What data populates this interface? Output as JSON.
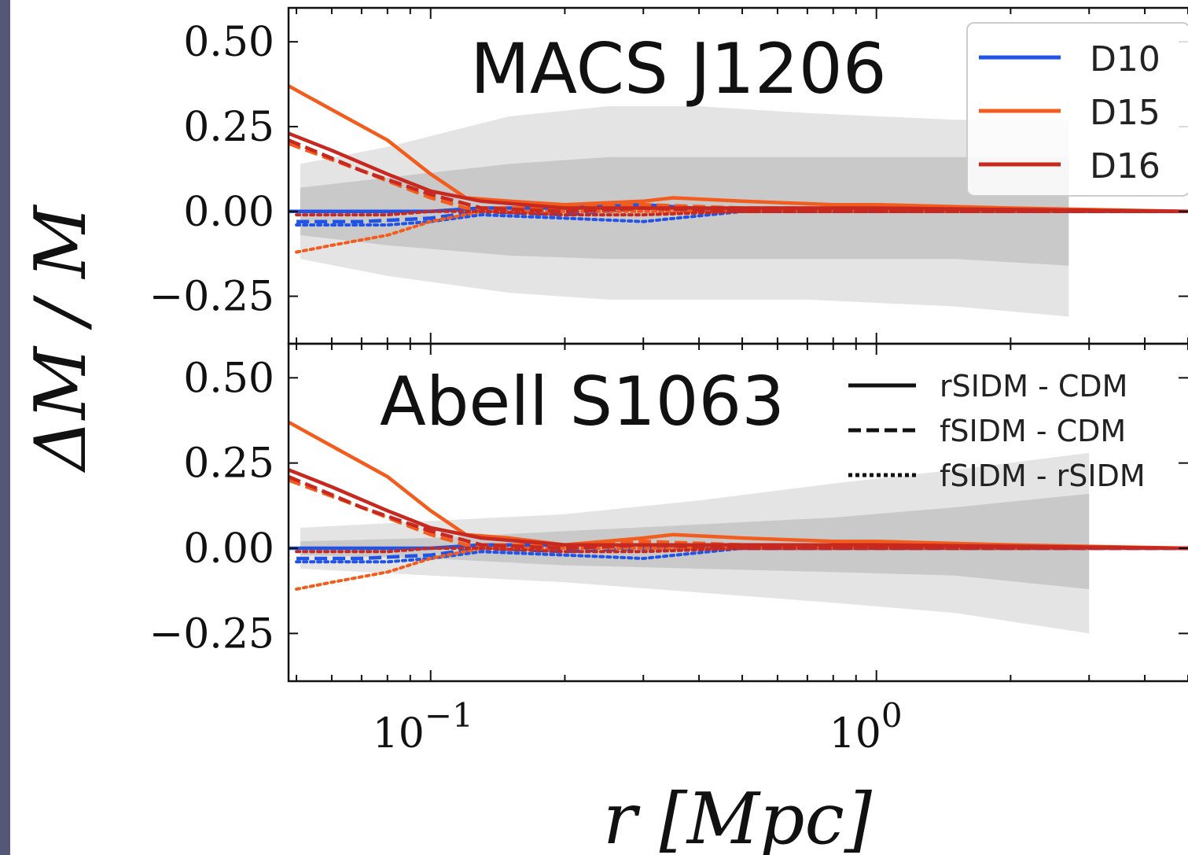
{
  "chart_data": {
    "type": "line",
    "xscale": "log",
    "xlim": [
      0.048,
      5.0
    ],
    "ylim": [
      -0.39,
      0.6
    ],
    "xticks": [
      {
        "value": 0.1,
        "base": "10",
        "exp": "−1"
      },
      {
        "value": 1,
        "base": "10",
        "exp": "0"
      }
    ],
    "yticks": [
      {
        "value": 0.5,
        "label": "0.50"
      },
      {
        "value": 0.25,
        "label": "0.25"
      },
      {
        "value": 0.0,
        "label": "0.00"
      },
      {
        "value": -0.25,
        "label": "−0.25"
      }
    ],
    "xlabel": "r [Mpc]",
    "ylabel": "ΔM / M",
    "grid": false,
    "model_legend": [
      {
        "name": "D10",
        "color": "#2154e6"
      },
      {
        "name": "D15",
        "color": "#f25d1d"
      },
      {
        "name": "D16",
        "color": "#c7281f"
      }
    ],
    "style_legend": [
      {
        "name": "rSIDM - CDM",
        "dash": "solid"
      },
      {
        "name": "fSIDM - CDM",
        "dash": "dashed"
      },
      {
        "name": "fSIDM - rSIDM",
        "dash": "dotted"
      }
    ],
    "panels": [
      {
        "title": "MACS J1206",
        "band_outer": {
          "x": [
            0.051,
            0.08,
            0.15,
            0.25,
            0.4,
            0.7,
            1.5,
            2.7
          ],
          "upper": [
            0.14,
            0.19,
            0.28,
            0.31,
            0.31,
            0.29,
            0.27,
            0.27
          ],
          "lower": [
            -0.14,
            -0.19,
            -0.24,
            -0.26,
            -0.26,
            -0.26,
            -0.28,
            -0.31
          ]
        },
        "band_inner": {
          "x": [
            0.051,
            0.08,
            0.15,
            0.25,
            0.4,
            0.7,
            1.5,
            2.7
          ],
          "upper": [
            0.07,
            0.1,
            0.14,
            0.16,
            0.16,
            0.16,
            0.16,
            0.16
          ],
          "lower": [
            -0.07,
            -0.1,
            -0.13,
            -0.14,
            -0.14,
            -0.14,
            -0.14,
            -0.16
          ]
        },
        "series": [
          {
            "model": "D10",
            "dash": "solid",
            "x": [
              0.048,
              0.1,
              0.13,
              0.2,
              0.3,
              0.5,
              1.0,
              5.0
            ],
            "y": [
              0.0,
              0.0,
              0.01,
              0.01,
              0.02,
              0.0,
              0.0,
              0.0
            ]
          },
          {
            "model": "D10",
            "dash": "dashed",
            "x": [
              0.05,
              0.07,
              0.1,
              0.13,
              0.2,
              0.3,
              0.5,
              1.0,
              5.0
            ],
            "y": [
              -0.03,
              -0.03,
              -0.02,
              0.0,
              -0.01,
              0.01,
              0.0,
              0.0,
              0.0
            ]
          },
          {
            "model": "D10",
            "dash": "dotted",
            "x": [
              0.05,
              0.08,
              0.1,
              0.13,
              0.2,
              0.3,
              0.5,
              1.0,
              5.0
            ],
            "y": [
              -0.04,
              -0.04,
              -0.03,
              -0.01,
              -0.02,
              -0.03,
              0.0,
              0.0,
              0.0
            ]
          },
          {
            "model": "D15",
            "dash": "solid",
            "x": [
              0.048,
              0.06,
              0.08,
              0.1,
              0.12,
              0.15,
              0.2,
              0.3,
              0.35,
              0.5,
              0.8,
              1.0,
              2.0,
              5.0
            ],
            "y": [
              0.37,
              0.3,
              0.21,
              0.11,
              0.04,
              0.03,
              0.02,
              0.03,
              0.04,
              0.03,
              0.02,
              0.02,
              0.01,
              0.0
            ]
          },
          {
            "model": "D15",
            "dash": "dashed",
            "x": [
              0.048,
              0.07,
              0.1,
              0.12,
              0.2,
              0.3,
              0.5,
              1.0,
              5.0
            ],
            "y": [
              0.2,
              0.12,
              0.04,
              0.01,
              0.01,
              0.02,
              0.01,
              0.01,
              0.0
            ]
          },
          {
            "model": "D15",
            "dash": "dotted",
            "x": [
              0.05,
              0.06,
              0.08,
              0.1,
              0.13,
              0.2,
              0.3,
              0.5,
              1.0,
              5.0
            ],
            "y": [
              -0.12,
              -0.1,
              -0.07,
              -0.03,
              0.0,
              0.0,
              0.0,
              0.0,
              0.0,
              0.0
            ]
          },
          {
            "model": "D16",
            "dash": "solid",
            "x": [
              0.048,
              0.06,
              0.08,
              0.1,
              0.13,
              0.2,
              0.3,
              0.5,
              1.0,
              5.0
            ],
            "y": [
              0.23,
              0.18,
              0.11,
              0.06,
              0.03,
              0.01,
              0.01,
              0.01,
              0.01,
              0.0
            ]
          },
          {
            "model": "D16",
            "dash": "dashed",
            "x": [
              0.048,
              0.07,
              0.1,
              0.13,
              0.2,
              0.3,
              0.5,
              1.0,
              5.0
            ],
            "y": [
              0.21,
              0.12,
              0.05,
              0.01,
              0.0,
              0.01,
              0.0,
              0.0,
              0.0
            ]
          },
          {
            "model": "D16",
            "dash": "dotted",
            "x": [
              0.05,
              0.08,
              0.1,
              0.13,
              0.2,
              0.3,
              0.5,
              1.0,
              5.0
            ],
            "y": [
              -0.01,
              -0.01,
              0.0,
              0.0,
              -0.01,
              -0.01,
              0.0,
              0.0,
              0.0
            ]
          }
        ]
      },
      {
        "title": "Abell S1063",
        "band_outer": {
          "x": [
            0.051,
            0.1,
            0.2,
            0.4,
            0.8,
            1.5,
            3.0
          ],
          "upper": [
            0.06,
            0.08,
            0.1,
            0.14,
            0.19,
            0.23,
            0.28
          ],
          "lower": [
            -0.06,
            -0.08,
            -0.1,
            -0.13,
            -0.16,
            -0.19,
            -0.25
          ]
        },
        "band_inner": {
          "x": [
            0.051,
            0.1,
            0.2,
            0.4,
            0.8,
            1.5,
            3.0
          ],
          "upper": [
            0.02,
            0.03,
            0.05,
            0.07,
            0.09,
            0.12,
            0.16
          ],
          "lower": [
            -0.02,
            -0.03,
            -0.05,
            -0.06,
            -0.07,
            -0.08,
            -0.12
          ]
        },
        "series": [
          {
            "model": "D10",
            "dash": "solid",
            "x": [
              0.048,
              0.1,
              0.13,
              0.2,
              0.3,
              0.5,
              1.0,
              5.0
            ],
            "y": [
              0.0,
              0.0,
              0.01,
              0.01,
              0.01,
              0.0,
              0.0,
              0.0
            ]
          },
          {
            "model": "D10",
            "dash": "dashed",
            "x": [
              0.05,
              0.07,
              0.1,
              0.13,
              0.2,
              0.3,
              0.5,
              1.0,
              5.0
            ],
            "y": [
              -0.03,
              -0.03,
              -0.02,
              0.0,
              -0.01,
              0.0,
              0.0,
              0.0,
              0.0
            ]
          },
          {
            "model": "D10",
            "dash": "dotted",
            "x": [
              0.05,
              0.08,
              0.1,
              0.13,
              0.2,
              0.3,
              0.5,
              1.0,
              5.0
            ],
            "y": [
              -0.04,
              -0.04,
              -0.03,
              -0.01,
              -0.02,
              -0.03,
              0.0,
              0.0,
              0.0
            ]
          },
          {
            "model": "D15",
            "dash": "solid",
            "x": [
              0.048,
              0.06,
              0.08,
              0.1,
              0.12,
              0.15,
              0.2,
              0.3,
              0.35,
              0.5,
              0.8,
              1.0,
              2.0,
              5.0
            ],
            "y": [
              0.37,
              0.3,
              0.21,
              0.11,
              0.04,
              0.03,
              0.01,
              0.03,
              0.04,
              0.03,
              0.02,
              0.02,
              0.01,
              0.0
            ]
          },
          {
            "model": "D15",
            "dash": "dashed",
            "x": [
              0.048,
              0.07,
              0.1,
              0.12,
              0.2,
              0.3,
              0.5,
              1.0,
              5.0
            ],
            "y": [
              0.2,
              0.12,
              0.04,
              0.01,
              0.01,
              0.02,
              0.01,
              0.01,
              0.0
            ]
          },
          {
            "model": "D15",
            "dash": "dotted",
            "x": [
              0.05,
              0.06,
              0.08,
              0.1,
              0.13,
              0.2,
              0.3,
              0.5,
              1.0,
              5.0
            ],
            "y": [
              -0.12,
              -0.1,
              -0.07,
              -0.03,
              0.0,
              0.0,
              0.0,
              0.0,
              0.0,
              0.0
            ]
          },
          {
            "model": "D16",
            "dash": "solid",
            "x": [
              0.048,
              0.06,
              0.08,
              0.1,
              0.13,
              0.2,
              0.3,
              0.5,
              1.0,
              5.0
            ],
            "y": [
              0.23,
              0.18,
              0.11,
              0.06,
              0.03,
              0.01,
              0.01,
              0.01,
              0.01,
              0.0
            ]
          },
          {
            "model": "D16",
            "dash": "dashed",
            "x": [
              0.048,
              0.07,
              0.1,
              0.13,
              0.2,
              0.3,
              0.5,
              1.0,
              5.0
            ],
            "y": [
              0.21,
              0.12,
              0.05,
              0.01,
              0.0,
              0.01,
              0.0,
              0.0,
              0.0
            ]
          },
          {
            "model": "D16",
            "dash": "dotted",
            "x": [
              0.05,
              0.08,
              0.1,
              0.13,
              0.2,
              0.3,
              0.5,
              1.0,
              5.0
            ],
            "y": [
              -0.01,
              -0.01,
              0.0,
              0.0,
              -0.01,
              -0.01,
              0.0,
              0.0,
              0.0
            ]
          }
        ]
      }
    ]
  }
}
